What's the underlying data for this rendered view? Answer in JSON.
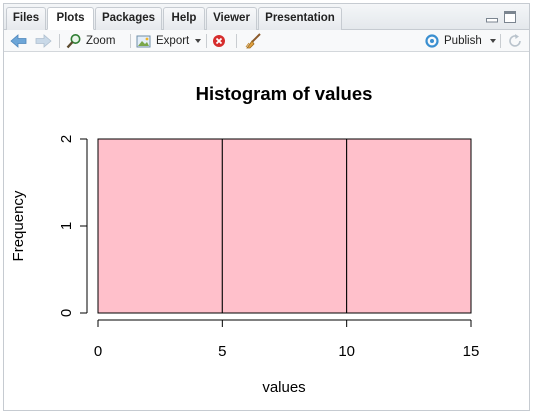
{
  "tabs": [
    {
      "label": "Files",
      "active": false
    },
    {
      "label": "Plots",
      "active": true
    },
    {
      "label": "Packages",
      "active": false
    },
    {
      "label": "Help",
      "active": false
    },
    {
      "label": "Viewer",
      "active": false
    },
    {
      "label": "Presentation",
      "active": false
    }
  ],
  "toolbar": {
    "zoom_label": "Zoom",
    "export_label": "Export",
    "publish_label": "Publish"
  },
  "colors": {
    "bar_fill": "#ffc0cb",
    "publish_icon": "#3a8fd0",
    "delete_icon": "#d62d2d",
    "zoom_icon": "#2e7d32"
  },
  "chart_data": {
    "type": "bar",
    "title": "Histogram of values",
    "xlabel": "values",
    "ylabel": "Frequency",
    "bins": [
      [
        0,
        5
      ],
      [
        5,
        10
      ],
      [
        10,
        15
      ]
    ],
    "values": [
      2,
      2,
      2
    ],
    "xlim": [
      0,
      15
    ],
    "ylim": [
      0,
      2
    ],
    "x_ticks": [
      "0",
      "5",
      "10",
      "15"
    ],
    "y_ticks": [
      "0",
      "1",
      "2"
    ],
    "grid": false,
    "legend": "none"
  }
}
